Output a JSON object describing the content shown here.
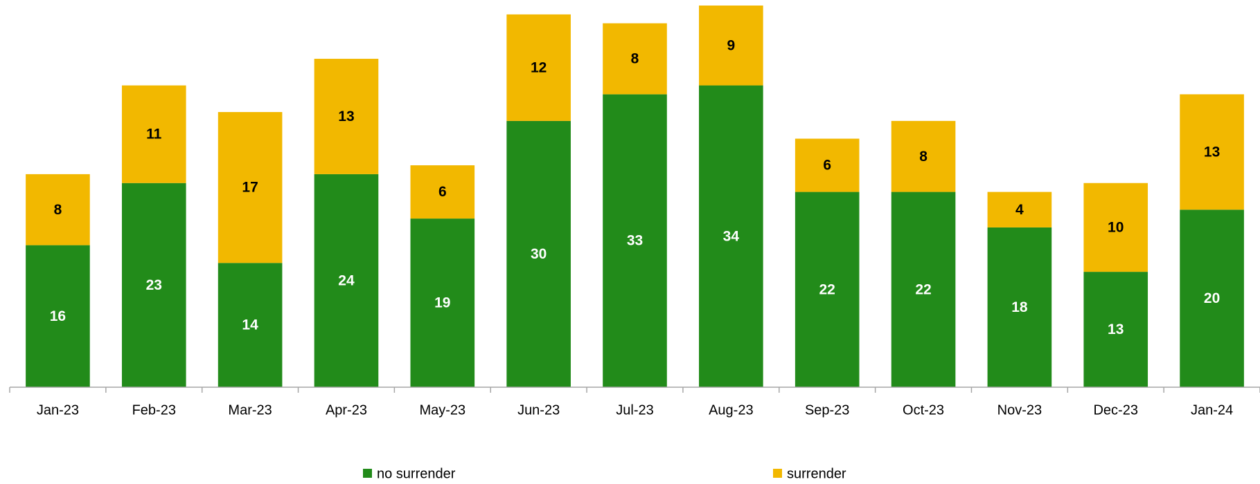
{
  "chart_data": {
    "type": "stacked_bar",
    "categories": [
      "Jan-23",
      "Feb-23",
      "Mar-23",
      "Apr-23",
      "May-23",
      "Jun-23",
      "Jul-23",
      "Aug-23",
      "Sep-23",
      "Oct-23",
      "Nov-23",
      "Dec-23",
      "Jan-24"
    ],
    "series": [
      {
        "name": "no surrender",
        "color": "#228b1a",
        "label_color": "#ffffff",
        "values": [
          16,
          23,
          14,
          24,
          19,
          30,
          33,
          34,
          22,
          22,
          18,
          13,
          20
        ]
      },
      {
        "name": "surrender",
        "color": "#f2b800",
        "label_color": "#000000",
        "values": [
          8,
          11,
          17,
          13,
          6,
          12,
          8,
          9,
          6,
          8,
          4,
          10,
          13
        ]
      }
    ],
    "legend": "bottom"
  }
}
